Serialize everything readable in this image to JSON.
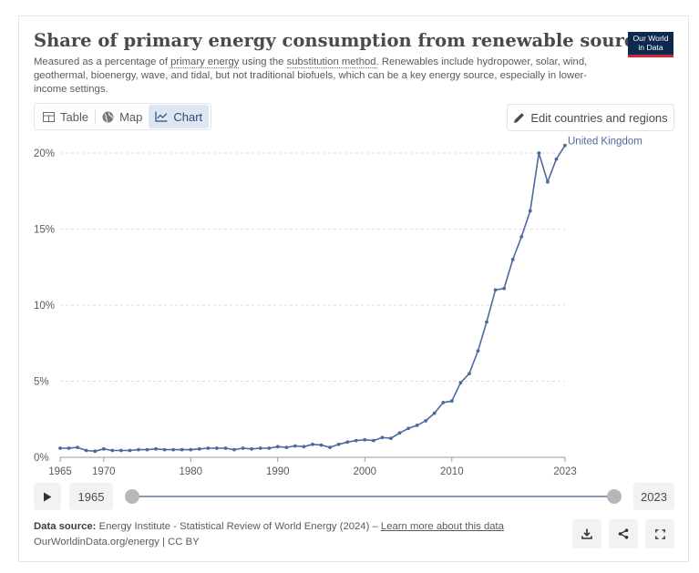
{
  "header": {
    "title": "Share of primary energy consumption from renewable sources",
    "subtitle_parts": [
      "Measured as a percentage of ",
      "primary energy",
      " using the ",
      "substitution method",
      ". Renewables include hydropower, solar, wind, geothermal, bioenergy, wave, and tidal, but not traditional biofuels, which can be a key energy source, especially in lower-income settings."
    ],
    "logo_line1": "Our World",
    "logo_line2": "in Data"
  },
  "tabs": [
    {
      "label": "Table",
      "icon": "table-icon"
    },
    {
      "label": "Map",
      "icon": "globe-icon"
    },
    {
      "label": "Chart",
      "icon": "line-chart-icon",
      "active": true
    }
  ],
  "edit_button": {
    "label": "Edit countries and regions",
    "icon": "pencil-icon"
  },
  "timeline": {
    "start_label": "1965",
    "end_label": "2023"
  },
  "footer": {
    "source_label": "Data source:",
    "source_text": " Energy Institute - Statistical Review of World Energy (2024) – ",
    "learn_more": "Learn more about this data",
    "credit": "OurWorldinData.org/energy | CC BY"
  },
  "actions": [
    {
      "name": "download-icon"
    },
    {
      "name": "share-icon"
    },
    {
      "name": "fullscreen-icon"
    }
  ],
  "colors": {
    "series": "#4c6a9c",
    "grid": "#dddddd",
    "tab_active_bg": "#dde6f2"
  },
  "chart_data": {
    "type": "line",
    "title": "",
    "xlabel": "",
    "ylabel": "",
    "xlim": [
      1965,
      2023
    ],
    "ylim": [
      0,
      20
    ],
    "x_ticks": [
      1965,
      1970,
      1980,
      1990,
      2000,
      2010,
      2023
    ],
    "y_ticks": [
      0,
      5,
      10,
      15,
      20
    ],
    "y_tick_labels": [
      "0%",
      "5%",
      "10%",
      "15%",
      "20%"
    ],
    "grid": true,
    "series": [
      {
        "name": "United Kingdom",
        "x": [
          1965,
          1966,
          1967,
          1968,
          1969,
          1970,
          1971,
          1972,
          1973,
          1974,
          1975,
          1976,
          1977,
          1978,
          1979,
          1980,
          1981,
          1982,
          1983,
          1984,
          1985,
          1986,
          1987,
          1988,
          1989,
          1990,
          1991,
          1992,
          1993,
          1994,
          1995,
          1996,
          1997,
          1998,
          1999,
          2000,
          2001,
          2002,
          2003,
          2004,
          2005,
          2006,
          2007,
          2008,
          2009,
          2010,
          2011,
          2012,
          2013,
          2014,
          2015,
          2016,
          2017,
          2018,
          2019,
          2020,
          2021,
          2022,
          2023
        ],
        "values": [
          0.6,
          0.6,
          0.65,
          0.45,
          0.4,
          0.55,
          0.45,
          0.45,
          0.45,
          0.5,
          0.5,
          0.55,
          0.5,
          0.5,
          0.5,
          0.5,
          0.55,
          0.6,
          0.6,
          0.6,
          0.5,
          0.6,
          0.55,
          0.6,
          0.6,
          0.7,
          0.65,
          0.75,
          0.7,
          0.85,
          0.8,
          0.65,
          0.85,
          1.0,
          1.1,
          1.15,
          1.1,
          1.3,
          1.25,
          1.6,
          1.9,
          2.1,
          2.4,
          2.9,
          3.6,
          3.7,
          4.9,
          5.5,
          7.0,
          8.9,
          11.0,
          11.1,
          13.0,
          14.5,
          16.2,
          20.0,
          18.1,
          19.6,
          20.5
        ]
      }
    ]
  }
}
